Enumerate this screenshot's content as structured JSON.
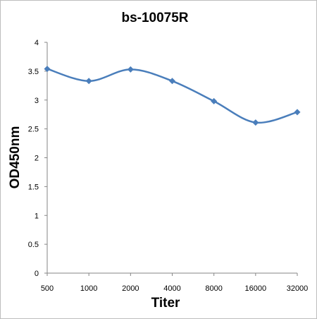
{
  "chart_data": {
    "type": "line",
    "title": "bs-10075R",
    "xlabel": "Titer",
    "ylabel": "OD450nm",
    "categories": [
      "500",
      "1000",
      "2000",
      "4000",
      "8000",
      "16000",
      "32000"
    ],
    "series": [
      {
        "values": [
          3.54,
          3.33,
          3.53,
          3.33,
          2.98,
          2.61,
          2.79
        ],
        "color": "#4a7ebb",
        "marker": "diamond",
        "smooth": true
      }
    ],
    "ylim": [
      0,
      4
    ],
    "yticks": [
      "0",
      "0.5",
      "1",
      "1.5",
      "2",
      "2.5",
      "3",
      "3.5",
      "4"
    ],
    "grid": false,
    "legend": "none"
  }
}
